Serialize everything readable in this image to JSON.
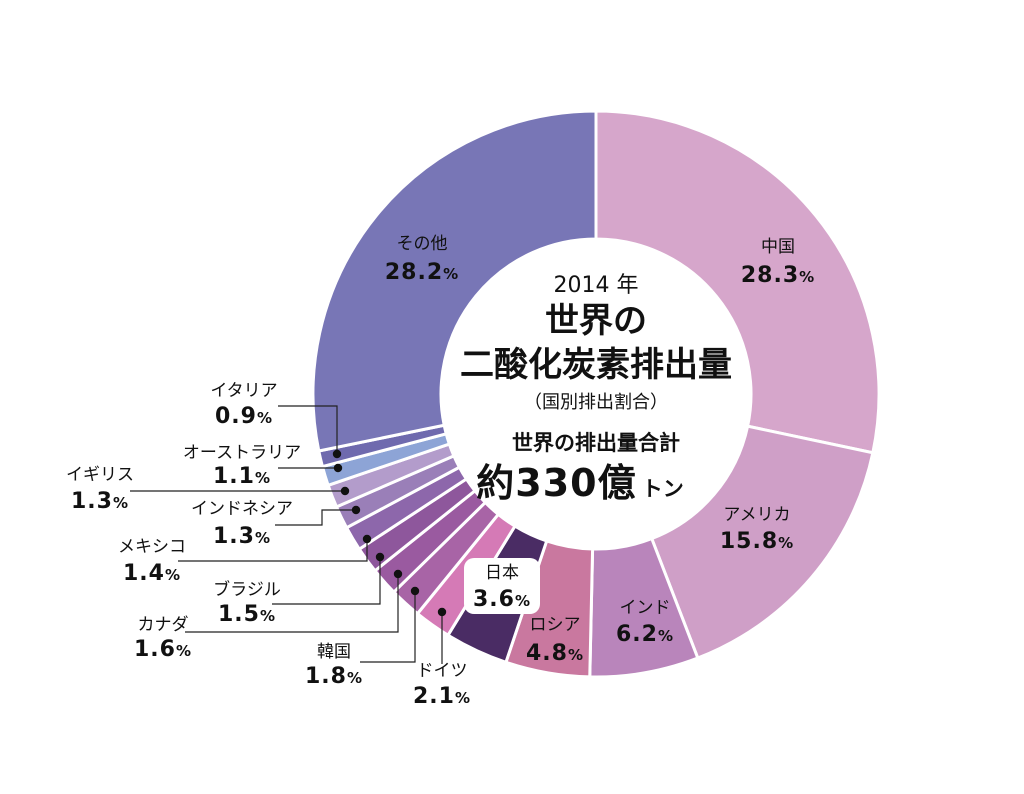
{
  "chart_data": {
    "type": "pie",
    "center": {
      "year": "2014 年",
      "title_line1": "世界の",
      "title_line2": "二酸化炭素排出量",
      "subtitle": "（国別排出割合）",
      "total_label": "世界の排出量合計",
      "total_value": "約330億",
      "total_unit": "トン"
    },
    "unit": "%",
    "slices": [
      {
        "name": "中国",
        "value": 28.3,
        "label": "28.3",
        "color": "#d6a6cb"
      },
      {
        "name": "アメリカ",
        "value": 15.8,
        "label": "15.8",
        "color": "#cf9fc7"
      },
      {
        "name": "インド",
        "value": 6.2,
        "label": "6.2",
        "color": "#b985bb"
      },
      {
        "name": "ロシア",
        "value": 4.8,
        "label": "4.8",
        "color": "#c9789f"
      },
      {
        "name": "日本",
        "value": 3.6,
        "label": "3.6",
        "color": "#4a2c64"
      },
      {
        "name": "ドイツ",
        "value": 2.1,
        "label": "2.1",
        "color": "#d57ab6"
      },
      {
        "name": "韓国",
        "value": 1.8,
        "label": "1.8",
        "color": "#a864a6"
      },
      {
        "name": "カナダ",
        "value": 1.6,
        "label": "1.6",
        "color": "#9a5aa0"
      },
      {
        "name": "ブラジル",
        "value": 1.5,
        "label": "1.5",
        "color": "#8e579c"
      },
      {
        "name": "メキシコ",
        "value": 1.4,
        "label": "1.4",
        "color": "#8d67ab"
      },
      {
        "name": "インドネシア",
        "value": 1.3,
        "label": "1.3",
        "color": "#9a7fb8"
      },
      {
        "name": "イギリス",
        "value": 1.3,
        "label": "1.3",
        "color": "#b39ccb"
      },
      {
        "name": "オーストラリア",
        "value": 1.1,
        "label": "1.1",
        "color": "#8da4d6"
      },
      {
        "name": "イタリア",
        "value": 0.9,
        "label": "0.9",
        "color": "#6f6aae"
      },
      {
        "name": "その他",
        "value": 28.2,
        "label": "28.2",
        "color": "#7876b6"
      }
    ]
  }
}
